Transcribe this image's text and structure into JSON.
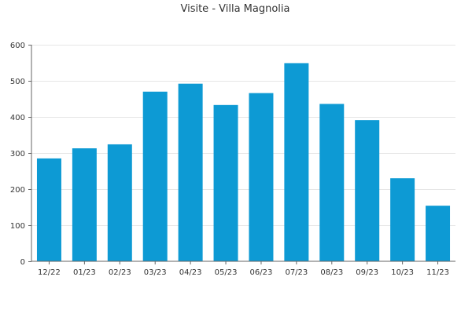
{
  "chart_data": {
    "type": "bar",
    "title": "Visite - Villa Magnolia",
    "xlabel": "",
    "ylabel": "",
    "categories": [
      "12/22",
      "01/23",
      "02/23",
      "03/23",
      "04/23",
      "05/23",
      "06/23",
      "07/23",
      "08/23",
      "09/23",
      "10/23",
      "11/23"
    ],
    "values": [
      285,
      313,
      324,
      470,
      492,
      433,
      466,
      549,
      436,
      391,
      230,
      154
    ],
    "ylim": [
      0,
      600
    ],
    "yticks": [
      0,
      100,
      200,
      300,
      400,
      500,
      600
    ],
    "grid": true,
    "legend": "none",
    "bar_color": "#0d9ad4"
  }
}
